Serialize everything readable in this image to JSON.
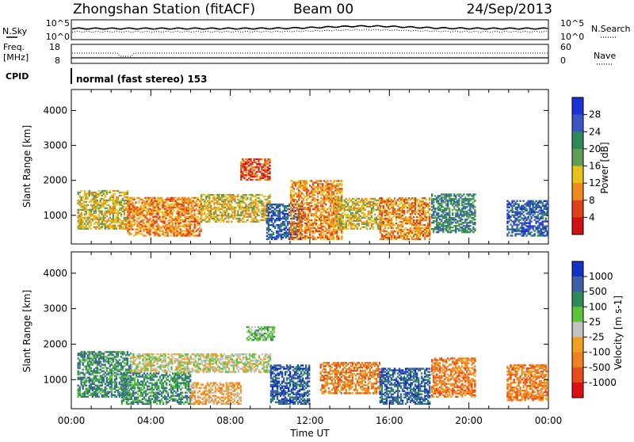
{
  "header": {
    "station": "Zhongshan Station (fitACF)",
    "beam": "Beam 00",
    "date": "24/Sep/2013"
  },
  "summary": {
    "nsky_label": "N.Sky",
    "nsky_ticks": [
      "10^5",
      "10^0"
    ],
    "nsearch_label": "N.Search",
    "nsearch_ticks": [
      "10^5",
      "10^0"
    ],
    "freq_label": [
      "Freq.",
      "[MHz]"
    ],
    "freq_ticks": [
      "18",
      "8"
    ],
    "nave_label": "Nave",
    "nave_ticks": [
      "60",
      "0"
    ],
    "cpid_label": "CPID",
    "cpid_text": "normal (fast stereo) 153"
  },
  "chart_data": [
    {
      "type": "heatmap",
      "title": "",
      "ylabel": "Slant Range [km]",
      "ylim": [
        180,
        4600
      ],
      "yticks": [
        "1000",
        "2000",
        "3000",
        "4000"
      ],
      "xticks": [
        "00:00",
        "04:00",
        "08:00",
        "12:00",
        "16:00",
        "20:00",
        "00:00"
      ],
      "xlim_hours": [
        0,
        24
      ],
      "colorbar": {
        "label": "Power [dB]",
        "ticks": [
          "4",
          "8",
          "12",
          "16",
          "20",
          "24",
          "28"
        ],
        "colors": [
          "#1a33d6",
          "#3d55c2",
          "#2e8b57",
          "#5f9d58",
          "#e8c11a",
          "#f08a1c",
          "#e0401a",
          "#d01212"
        ]
      },
      "regions": [
        {
          "t0": 0.3,
          "t1": 2.8,
          "r0": 600,
          "r1": 1700,
          "level": 3
        },
        {
          "t0": 2.8,
          "t1": 6.5,
          "r0": 400,
          "r1": 1500,
          "level": 2
        },
        {
          "t0": 6.5,
          "t1": 10.0,
          "r0": 800,
          "r1": 1600,
          "level": 3
        },
        {
          "t0": 8.5,
          "t1": 10.0,
          "r0": 2000,
          "r1": 2600,
          "level": 1
        },
        {
          "t0": 9.8,
          "t1": 11.6,
          "r0": 300,
          "r1": 1300,
          "level": 6
        },
        {
          "t0": 11.0,
          "t1": 13.6,
          "r0": 300,
          "r1": 2000,
          "level": 2
        },
        {
          "t0": 13.3,
          "t1": 15.5,
          "r0": 600,
          "r1": 1500,
          "level": 3
        },
        {
          "t0": 15.5,
          "t1": 18.0,
          "r0": 300,
          "r1": 1500,
          "level": 2
        },
        {
          "t0": 18.1,
          "t1": 20.3,
          "r0": 500,
          "r1": 1600,
          "level": 5
        },
        {
          "t0": 21.9,
          "t1": 23.9,
          "r0": 400,
          "r1": 1400,
          "level": 6
        }
      ]
    },
    {
      "type": "heatmap",
      "title": "",
      "ylabel": "Slant Range [km]",
      "ylim": [
        180,
        4600
      ],
      "yticks": [
        "1000",
        "2000",
        "3000",
        "4000"
      ],
      "xticks": [
        "00:00",
        "04:00",
        "08:00",
        "12:00",
        "16:00",
        "20:00",
        "00:00"
      ],
      "xlabel": "Time UT",
      "xlim_hours": [
        0,
        24
      ],
      "colorbar": {
        "label": "Velocity [m s-1]",
        "ticks": [
          "1000",
          "500",
          "100",
          "25",
          "-25",
          "-100",
          "-500",
          "-1000"
        ],
        "colors": [
          "#1431c8",
          "#3e5fa8",
          "#2f8a5a",
          "#5fc23b",
          "#c2c2c2",
          "#f0a020",
          "#f08020",
          "#e84c1a",
          "#e01010"
        ]
      },
      "regions": [
        {
          "t0": 0.3,
          "t1": 3.0,
          "r0": 500,
          "r1": 1800,
          "level": 6
        },
        {
          "t0": 3.0,
          "t1": 10.0,
          "r0": 1200,
          "r1": 1700,
          "level": 4
        },
        {
          "t0": 2.5,
          "t1": 6.0,
          "r0": 300,
          "r1": 1200,
          "level": 6
        },
        {
          "t0": 6.0,
          "t1": 8.5,
          "r0": 300,
          "r1": 900,
          "level": 3
        },
        {
          "t0": 8.8,
          "t1": 10.2,
          "r0": 2100,
          "r1": 2500,
          "level": 5
        },
        {
          "t0": 10.0,
          "t1": 12.0,
          "r0": 300,
          "r1": 1400,
          "level": 7
        },
        {
          "t0": 12.5,
          "t1": 15.5,
          "r0": 600,
          "r1": 1500,
          "level": 2
        },
        {
          "t0": 15.5,
          "t1": 18.0,
          "r0": 300,
          "r1": 1300,
          "level": 7
        },
        {
          "t0": 18.1,
          "t1": 20.3,
          "r0": 500,
          "r1": 1600,
          "level": 2
        },
        {
          "t0": 21.9,
          "t1": 23.9,
          "r0": 400,
          "r1": 1400,
          "level": 2
        }
      ]
    }
  ]
}
